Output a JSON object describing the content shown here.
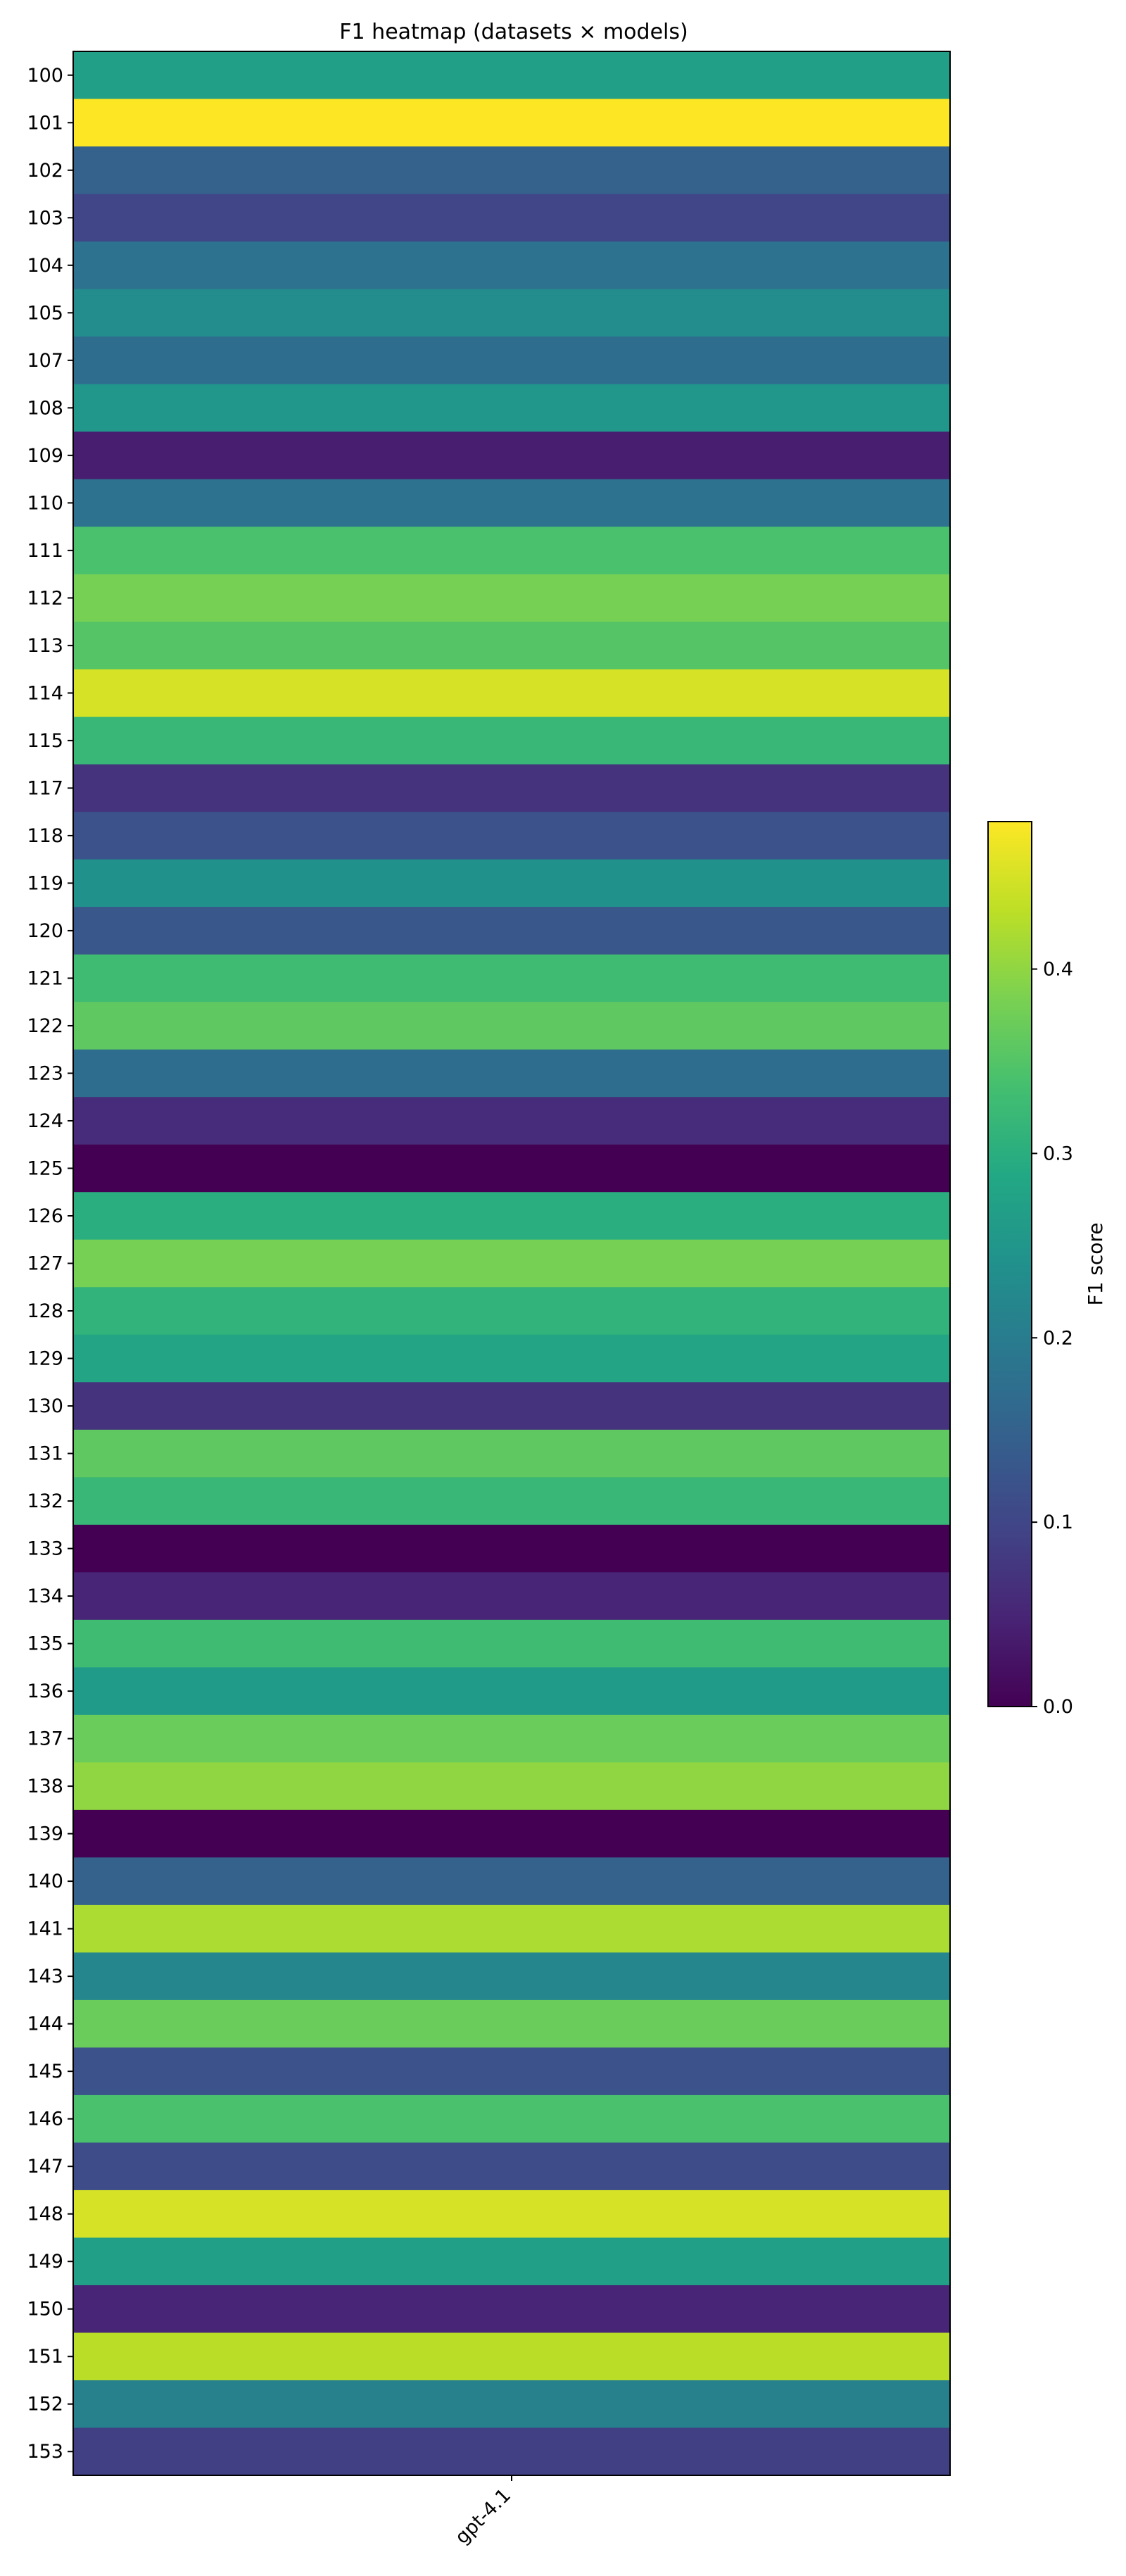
{
  "chart_data": {
    "type": "heatmap",
    "title": "F1 heatmap (datasets × models)",
    "columns": [
      "gpt-4.1"
    ],
    "rows": [
      "100",
      "101",
      "102",
      "103",
      "104",
      "105",
      "107",
      "108",
      "109",
      "110",
      "111",
      "112",
      "113",
      "114",
      "115",
      "117",
      "118",
      "119",
      "120",
      "121",
      "122",
      "123",
      "124",
      "125",
      "126",
      "127",
      "128",
      "129",
      "130",
      "131",
      "132",
      "133",
      "134",
      "135",
      "136",
      "137",
      "138",
      "139",
      "140",
      "141",
      "143",
      "144",
      "145",
      "146",
      "147",
      "148",
      "149",
      "150",
      "151",
      "152",
      "153"
    ],
    "values": [
      [
        0.27
      ],
      [
        0.48
      ],
      [
        0.15
      ],
      [
        0.1
      ],
      [
        0.18
      ],
      [
        0.23
      ],
      [
        0.17
      ],
      [
        0.25
      ],
      [
        0.04
      ],
      [
        0.18
      ],
      [
        0.34
      ],
      [
        0.38
      ],
      [
        0.35
      ],
      [
        0.45
      ],
      [
        0.32
      ],
      [
        0.07
      ],
      [
        0.12
      ],
      [
        0.24
      ],
      [
        0.13
      ],
      [
        0.33
      ],
      [
        0.36
      ],
      [
        0.17
      ],
      [
        0.06
      ],
      [
        0.0
      ],
      [
        0.3
      ],
      [
        0.38
      ],
      [
        0.31
      ],
      [
        0.28
      ],
      [
        0.07
      ],
      [
        0.36
      ],
      [
        0.32
      ],
      [
        0.0
      ],
      [
        0.05
      ],
      [
        0.33
      ],
      [
        0.26
      ],
      [
        0.37
      ],
      [
        0.4
      ],
      [
        0.0
      ],
      [
        0.15
      ],
      [
        0.42
      ],
      [
        0.22
      ],
      [
        0.37
      ],
      [
        0.12
      ],
      [
        0.34
      ],
      [
        0.11
      ],
      [
        0.45
      ],
      [
        0.27
      ],
      [
        0.05
      ],
      [
        0.43
      ],
      [
        0.21
      ],
      [
        0.09
      ]
    ],
    "colorbar": {
      "label": "F1 score",
      "range": [
        0.0,
        0.48
      ],
      "ticks": [
        0.0,
        0.1,
        0.2,
        0.3,
        0.4
      ],
      "tick_labels": [
        "0.0",
        "0.1",
        "0.2",
        "0.3",
        "0.4"
      ],
      "colormap": "viridis"
    }
  }
}
